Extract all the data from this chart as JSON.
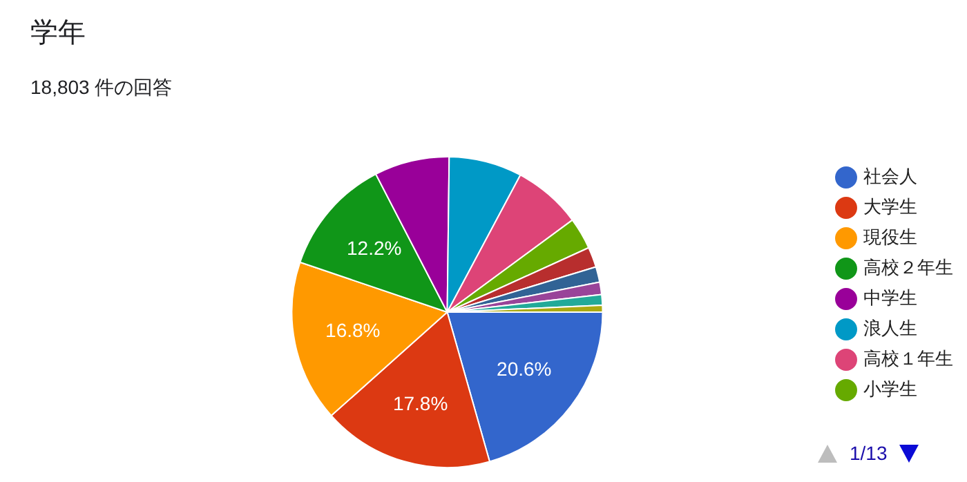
{
  "chart_data": {
    "type": "pie",
    "title": "学年",
    "subtitle": "18,803 件の回答",
    "categories": [
      "社会人",
      "大学生",
      "現役生",
      "高校２年生",
      "中学生",
      "浪人生",
      "高校１年生",
      "小学生",
      null,
      null,
      null,
      null,
      null
    ],
    "values": [
      20.6,
      17.8,
      16.8,
      12.2,
      7.8,
      7.6,
      7.1,
      3.3,
      2.1,
      1.6,
      1.3,
      1.1,
      0.7
    ],
    "colors": [
      "#3366cc",
      "#dc3912",
      "#ff9900",
      "#109618",
      "#990099",
      "#0099c6",
      "#dd4477",
      "#66aa00",
      "#b82e2e",
      "#316395",
      "#994499",
      "#22aa99",
      "#aaaa11"
    ],
    "value_labels": [
      "20.6%",
      "17.8%",
      "16.8%",
      "12.2%",
      null,
      null,
      null,
      null,
      null,
      null,
      null,
      null,
      null
    ],
    "legend": "right",
    "annotations": [
      "1/13"
    ]
  }
}
